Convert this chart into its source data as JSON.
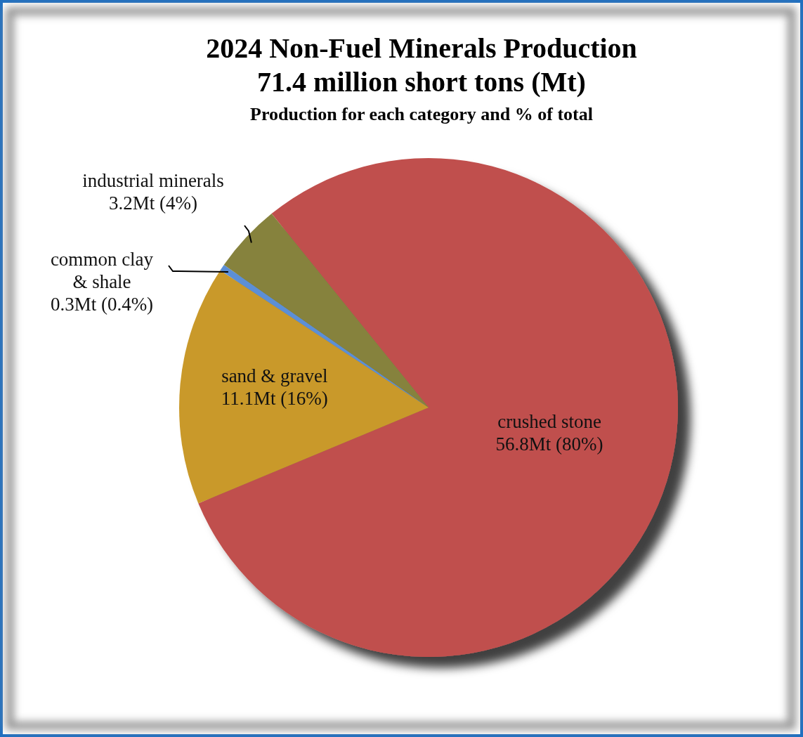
{
  "chart_data": {
    "type": "pie",
    "title": "2024 Non-Fuel Minerals Production",
    "subtitle": "71.4 million short tons (Mt)",
    "annotations": [
      "Production for each category and % of total"
    ],
    "categories": [
      "crushed stone",
      "sand & gravel",
      "common clay & shale",
      "industrial minerals"
    ],
    "values": [
      56.8,
      11.1,
      0.3,
      3.2
    ],
    "value_labels": [
      "56.8Mt  (80%)",
      "11.1Mt  (16%)",
      "0.3Mt  (0.4%)",
      "3.2Mt  (4%)"
    ],
    "colors": [
      "#c0504d",
      "#c9992b",
      "#5b8fd6",
      "#86823c"
    ],
    "legend": false
  }
}
